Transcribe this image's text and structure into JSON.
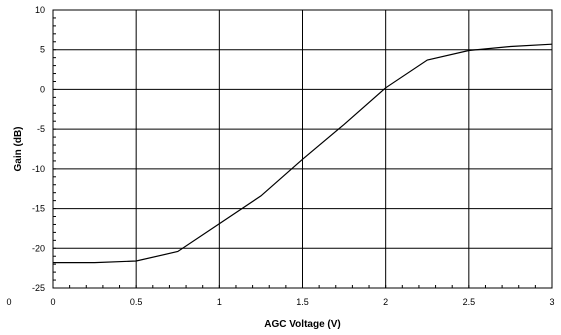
{
  "chart_data": {
    "type": "line",
    "title": "",
    "xlabel": "AGC Voltage (V)",
    "ylabel": "Gain (dB)",
    "xlim": [
      0,
      3
    ],
    "ylim": [
      -25,
      10
    ],
    "x_ticks": [
      "0",
      "0.5",
      "1",
      "1.5",
      "2",
      "2.5",
      "3"
    ],
    "y_ticks": [
      "10",
      "5",
      "0",
      "-5",
      "-10",
      "-15",
      "-20",
      "-25"
    ],
    "extra_x_label": "0",
    "grid": true,
    "series": [
      {
        "color": "#000000",
        "x": [
          0,
          0.25,
          0.5,
          0.75,
          1.0,
          1.25,
          1.5,
          1.75,
          2.0,
          2.25,
          2.5,
          2.75,
          3.0
        ],
        "y": [
          -21.8,
          -21.8,
          -21.6,
          -20.4,
          -16.9,
          -13.4,
          -8.8,
          -4.4,
          0.2,
          3.7,
          4.9,
          5.4,
          5.7
        ]
      }
    ]
  }
}
